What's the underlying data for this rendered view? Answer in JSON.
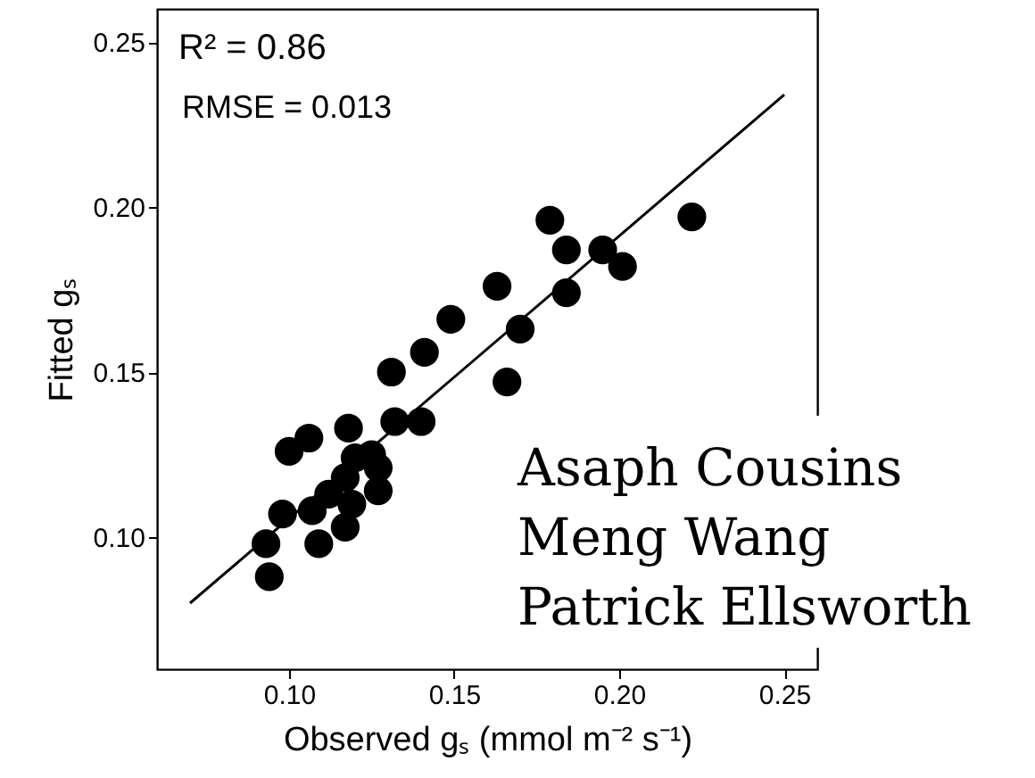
{
  "chart_data": {
    "type": "scatter",
    "xlabel": "Observed gₛ (mmol m⁻² s⁻¹)",
    "ylabel": "Fitted gₛ",
    "xlim": [
      0.06,
      0.26
    ],
    "ylim": [
      0.06,
      0.26
    ],
    "xticks": [
      {
        "value": 0.1,
        "label": "0.10"
      },
      {
        "value": 0.15,
        "label": "0.15"
      },
      {
        "value": 0.2,
        "label": "0.20"
      },
      {
        "value": 0.25,
        "label": "0.25"
      }
    ],
    "yticks": [
      {
        "value": 0.1,
        "label": "0.10"
      },
      {
        "value": 0.15,
        "label": "0.15"
      },
      {
        "value": 0.2,
        "label": "0.20"
      },
      {
        "value": 0.25,
        "label": "0.25"
      }
    ],
    "marker": "circle",
    "series": [
      {
        "type": "line",
        "marker": "none",
        "color": "#000000",
        "x": [
          0.07,
          0.25
        ],
        "values": [
          0.08,
          0.234
        ]
      },
      {
        "color": "#000000",
        "x": [
          0.179,
          0.222,
          0.184,
          0.195,
          0.201,
          0.184,
          0.163,
          0.149,
          0.17,
          0.141,
          0.131,
          0.166,
          0.132,
          0.14,
          0.118,
          0.106,
          0.1,
          0.125,
          0.12,
          0.127,
          0.117,
          0.112,
          0.127,
          0.119,
          0.107,
          0.098,
          0.117,
          0.109,
          0.093,
          0.094
        ],
        "values": [
          0.196,
          0.197,
          0.187,
          0.187,
          0.182,
          0.174,
          0.176,
          0.166,
          0.163,
          0.156,
          0.15,
          0.147,
          0.135,
          0.135,
          0.133,
          0.13,
          0.126,
          0.125,
          0.124,
          0.121,
          0.118,
          0.113,
          0.114,
          0.11,
          0.108,
          0.107,
          0.103,
          0.098,
          0.098,
          0.088
        ]
      }
    ],
    "annotations": [
      "R² = 0.86",
      "RMSE = 0.013",
      "Asaph Cousins",
      "Meng Wang",
      "Patrick Ellsworth"
    ]
  }
}
